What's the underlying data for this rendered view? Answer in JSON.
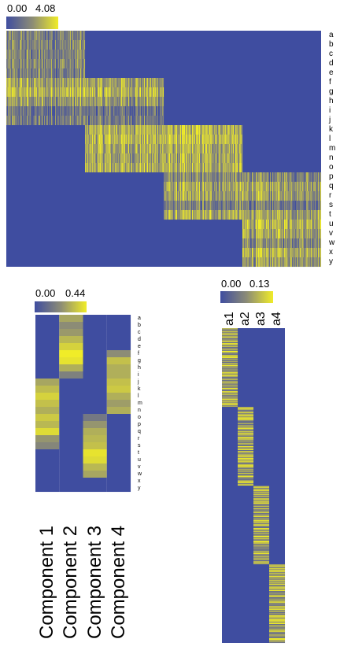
{
  "colors": {
    "low": "#3F4DA0",
    "mid": "#8C8C76",
    "high": "#F0EC28",
    "background": "#ffffff",
    "text": "#000000"
  },
  "chart_data": [
    {
      "type": "heatmap",
      "name": "heatmap-1",
      "colorbar": {
        "min_label": "0.00",
        "max_label": "4.08",
        "min": 0,
        "max": 4.08
      },
      "row_labels": [
        "a",
        "b",
        "c",
        "d",
        "e",
        "f",
        "g",
        "h",
        "i",
        "j",
        "k",
        "l",
        "m",
        "n",
        "o",
        "p",
        "q",
        "r",
        "s",
        "t",
        "u",
        "v",
        "w",
        "x",
        "y"
      ],
      "n_columns": 400,
      "blocks": [
        {
          "rows": [
            "a",
            "b",
            "c",
            "d",
            "e",
            "f",
            "g",
            "h",
            "i",
            "j"
          ],
          "col_range": [
            0,
            99
          ]
        },
        {
          "rows": [
            "f",
            "g",
            "h",
            "i",
            "j",
            "k",
            "l",
            "m",
            "n",
            "o"
          ],
          "col_range": [
            100,
            199
          ]
        },
        {
          "rows": [
            "k",
            "l",
            "m",
            "n",
            "o",
            "p",
            "q",
            "r",
            "s",
            "t"
          ],
          "col_range": [
            200,
            299
          ]
        },
        {
          "rows": [
            "p",
            "q",
            "r",
            "s",
            "t",
            "u",
            "v",
            "w",
            "x",
            "y"
          ],
          "col_range": [
            300,
            399
          ]
        }
      ],
      "approx_row_means": {
        "a": 1.6,
        "b": 1.7,
        "c": 1.6,
        "d": 1.9,
        "e": 1.6,
        "f": 2.4,
        "g": 2.9,
        "h": 2.2,
        "i": 1.2,
        "j": 1.4,
        "k": 2.8,
        "l": 3.0,
        "m": 2.6,
        "n": 2.5,
        "o": 2.7,
        "p": 1.8,
        "q": 2.5,
        "r": 2.4,
        "s": 1.5,
        "t": 2.6,
        "u": 2.9,
        "v": 2.6,
        "w": 1.9,
        "x": 2.9,
        "y": 2.4
      }
    },
    {
      "type": "heatmap",
      "name": "heatmap-2",
      "colorbar": {
        "min_label": "0.00",
        "max_label": "0.44",
        "min": 0,
        "max": 0.44
      },
      "row_labels": [
        "a",
        "b",
        "c",
        "d",
        "e",
        "f",
        "g",
        "h",
        "i",
        "j",
        "k",
        "l",
        "m",
        "n",
        "o",
        "p",
        "q",
        "r",
        "s",
        "t",
        "u",
        "v",
        "w",
        "x",
        "y"
      ],
      "column_labels": [
        "Component 1",
        "Component 2",
        "Component 3",
        "Component 4"
      ],
      "values": [
        [
          0,
          0.28,
          0,
          0
        ],
        [
          0,
          0.22,
          0,
          0
        ],
        [
          0,
          0.25,
          0,
          0
        ],
        [
          0,
          0.32,
          0,
          0
        ],
        [
          0,
          0.38,
          0,
          0
        ],
        [
          0,
          0.44,
          0,
          0.22
        ],
        [
          0,
          0.42,
          0,
          0.34
        ],
        [
          0,
          0.3,
          0,
          0.3
        ],
        [
          0,
          0.18,
          0,
          0.3
        ],
        [
          0.28,
          0,
          0,
          0.34
        ],
        [
          0.33,
          0,
          0,
          0.36
        ],
        [
          0.38,
          0,
          0,
          0.3
        ],
        [
          0.34,
          0,
          0,
          0.26
        ],
        [
          0.3,
          0,
          0,
          0.3
        ],
        [
          0.36,
          0,
          0.15,
          0
        ],
        [
          0.32,
          0,
          0.24,
          0
        ],
        [
          0.4,
          0,
          0.3,
          0
        ],
        [
          0.24,
          0,
          0.32,
          0
        ],
        [
          0.2,
          0,
          0.34,
          0
        ],
        [
          0,
          0,
          0.42,
          0
        ],
        [
          0,
          0,
          0.4,
          0
        ],
        [
          0,
          0,
          0.32,
          0
        ],
        [
          0,
          0,
          0.28,
          0
        ],
        [
          0,
          0,
          0,
          0
        ],
        [
          0,
          0,
          0,
          0
        ]
      ]
    },
    {
      "type": "heatmap",
      "name": "heatmap-3",
      "colorbar": {
        "min_label": "0.00",
        "max_label": "0.13",
        "min": 0,
        "max": 0.13
      },
      "column_labels": [
        "a1",
        "a2",
        "a3",
        "a4"
      ],
      "n_rows": 400,
      "blocks": [
        {
          "column": "a1",
          "row_range": [
            0,
            99
          ]
        },
        {
          "column": "a2",
          "row_range": [
            100,
            199
          ]
        },
        {
          "column": "a3",
          "row_range": [
            200,
            299
          ]
        },
        {
          "column": "a4",
          "row_range": [
            300,
            399
          ]
        }
      ]
    }
  ]
}
